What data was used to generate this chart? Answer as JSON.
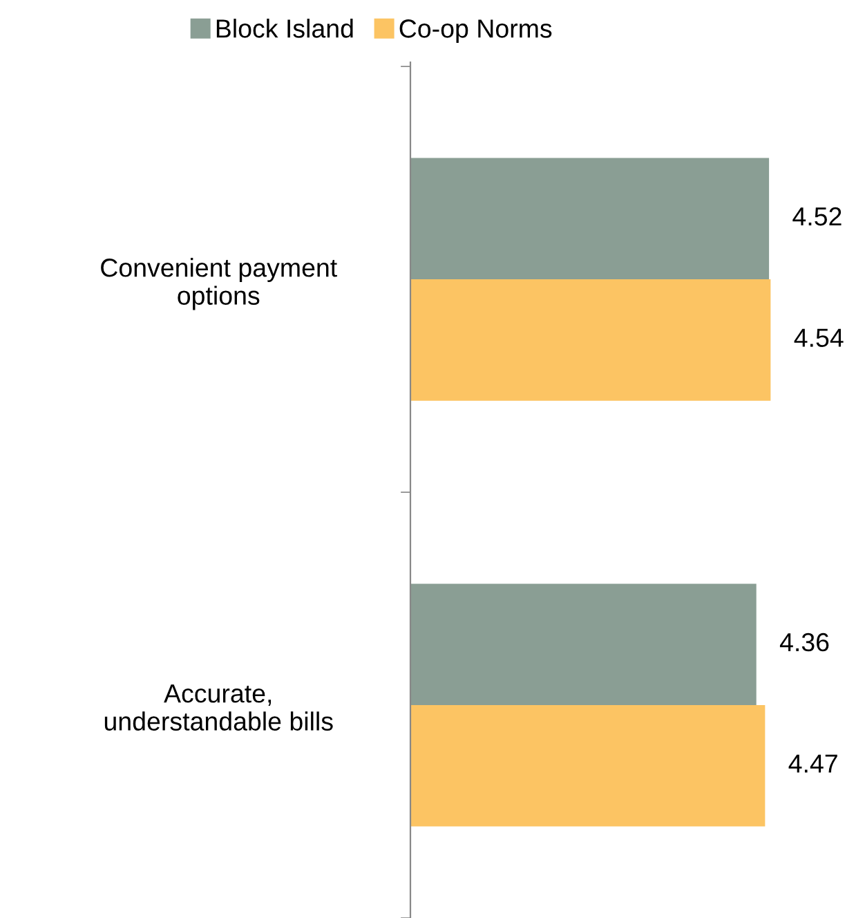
{
  "chart_data": {
    "type": "bar",
    "orientation": "horizontal",
    "categories": [
      "Convenient payment\noptions",
      "Accurate,\nunderstandable bills"
    ],
    "series": [
      {
        "name": "Block Island",
        "color": "#8a9e94",
        "values": [
          4.52,
          4.36
        ]
      },
      {
        "name": "Co-op Norms",
        "color": "#fcc463",
        "values": [
          4.54,
          4.47
        ]
      }
    ],
    "tick_labels": "y",
    "data_labels": true,
    "legend": "top",
    "grid": false
  }
}
